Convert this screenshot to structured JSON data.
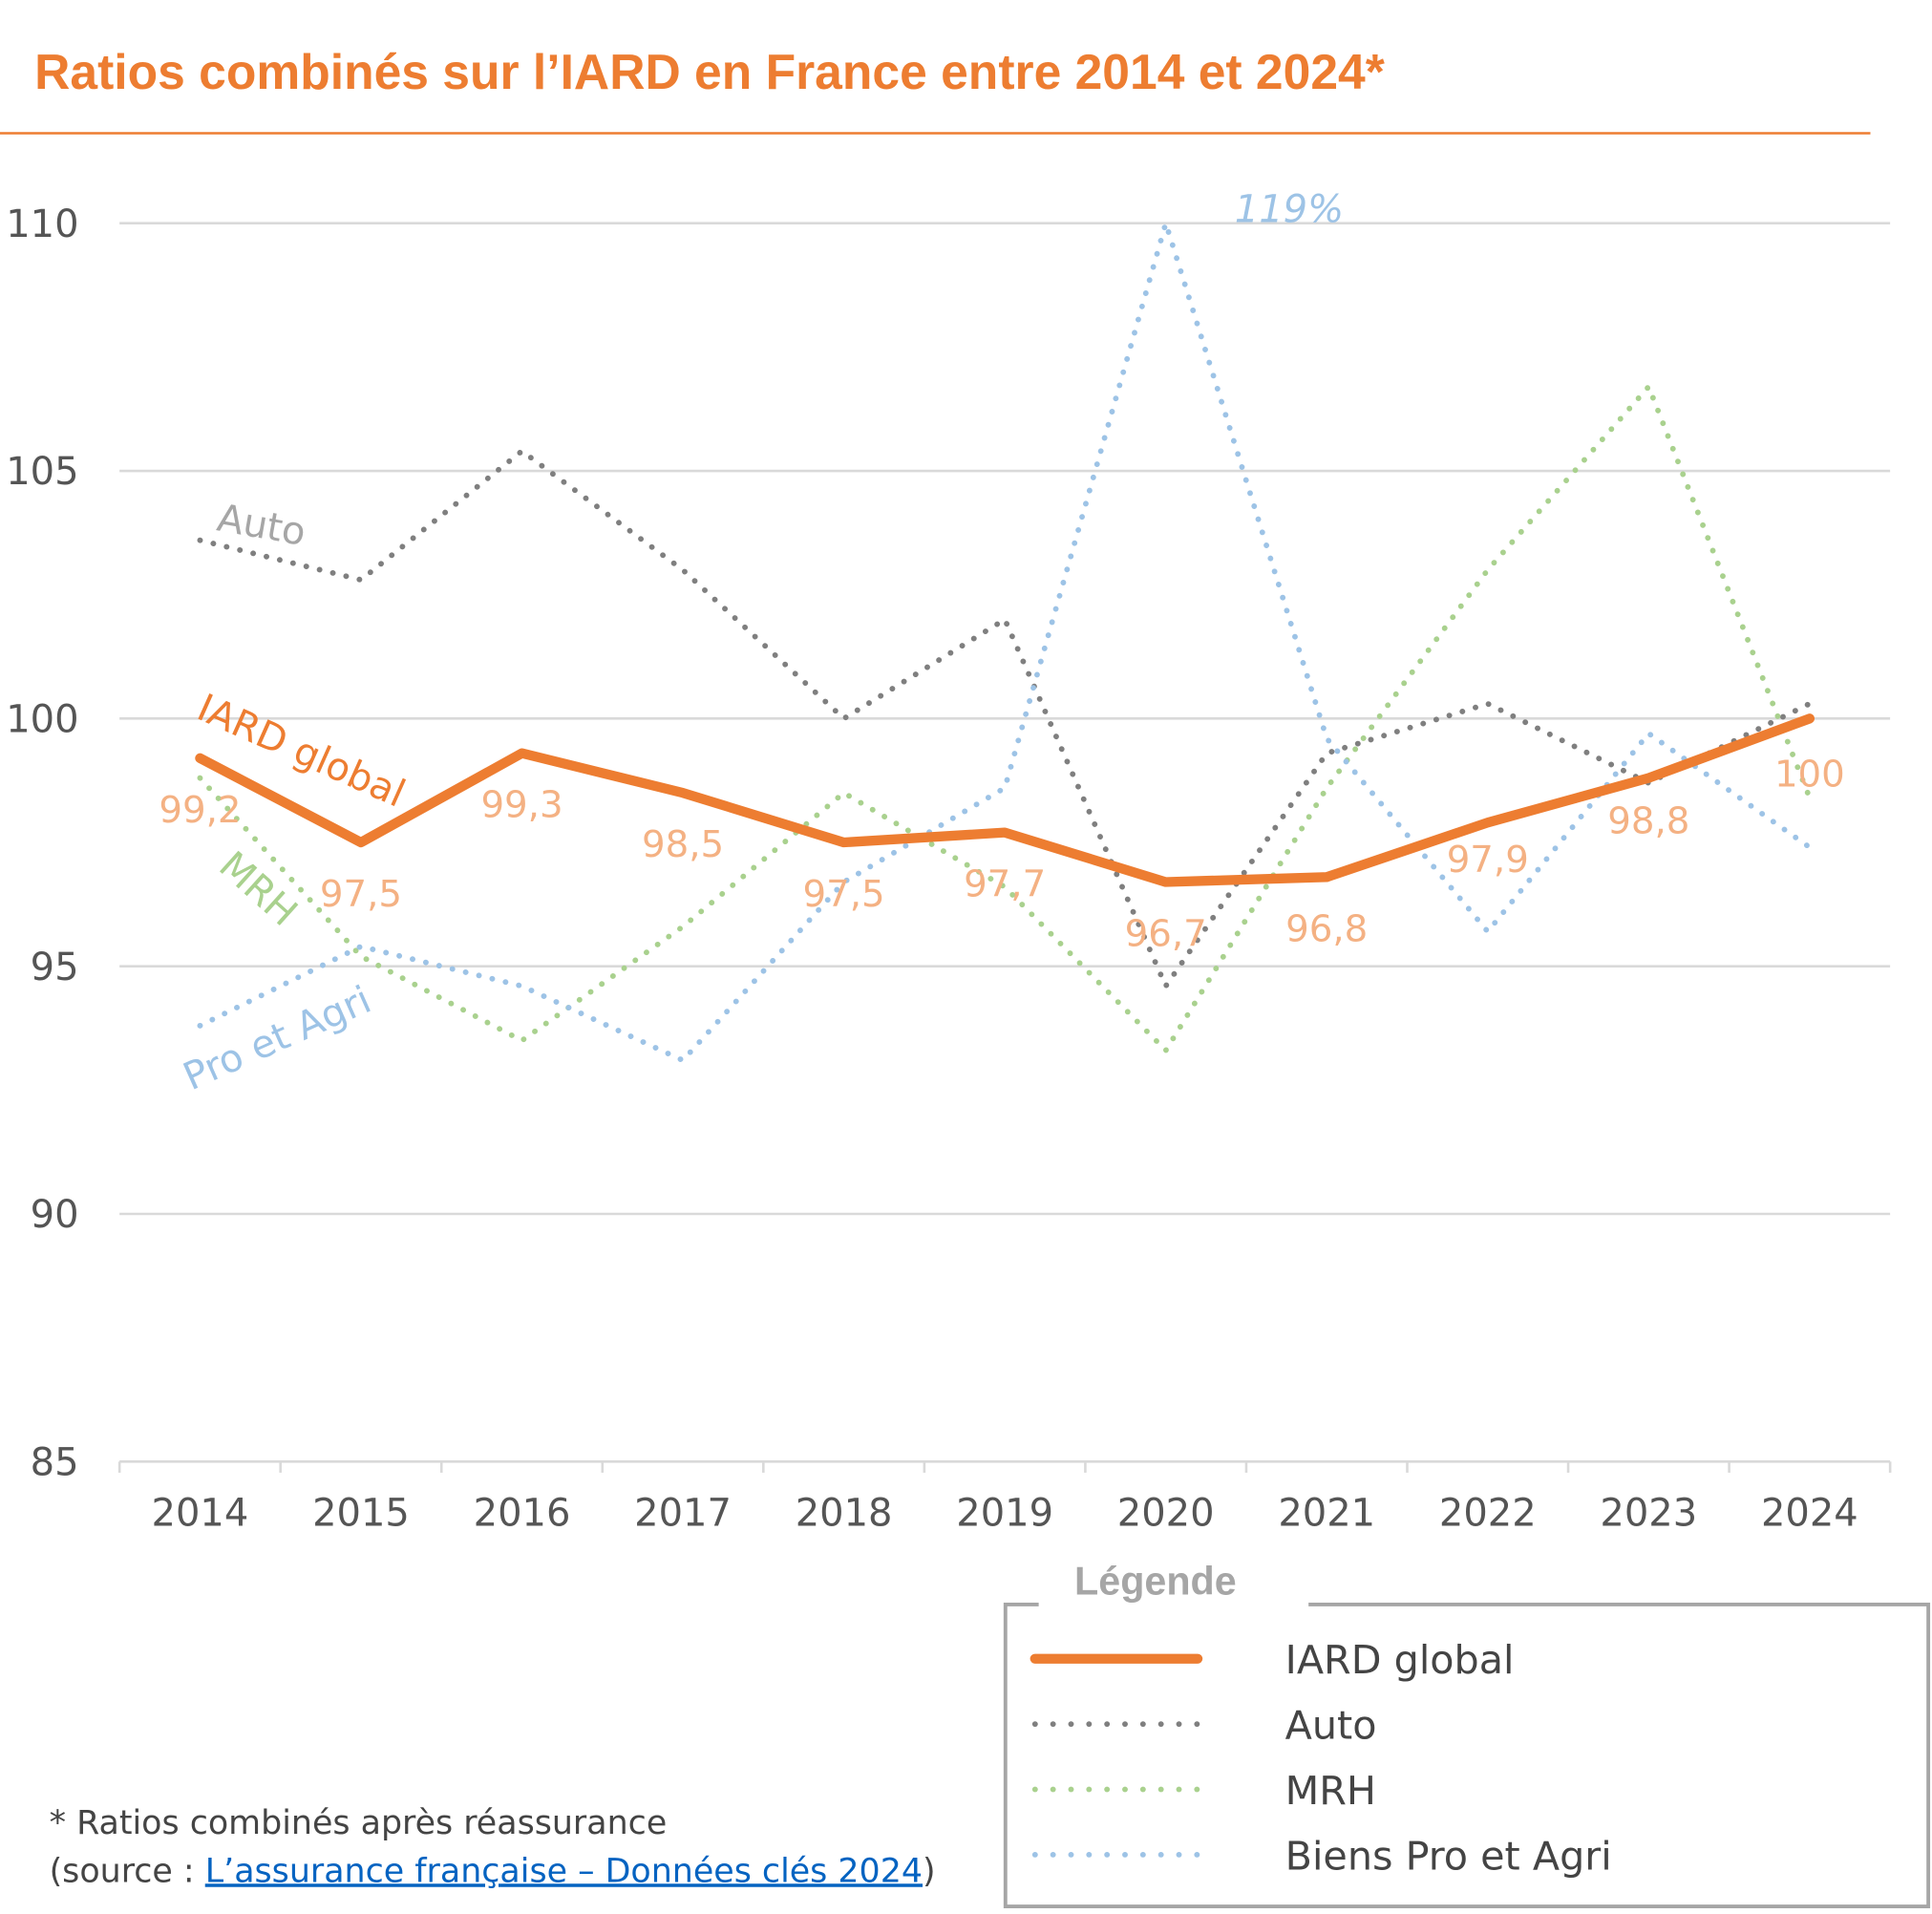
{
  "chart_data": {
    "type": "line",
    "title": "Ratios combinés sur l’IARD en France entre 2014 et 2024*",
    "xlabel": "",
    "ylabel": "",
    "categories": [
      "2014",
      "2015",
      "2016",
      "2017",
      "2018",
      "2019",
      "2020",
      "2021",
      "2022",
      "2023",
      "2024"
    ],
    "ylim": [
      85,
      110
    ],
    "yticks": [
      "85",
      "90",
      "95",
      "100",
      "105",
      "110"
    ],
    "grid": true,
    "series": [
      {
        "name": "IARD global",
        "color": "#ED7D31",
        "style": "solid",
        "values": [
          99.2,
          97.5,
          99.3,
          98.5,
          97.5,
          97.7,
          96.7,
          96.8,
          97.9,
          98.8,
          100
        ],
        "data_labels": [
          "99,2",
          "97,5",
          "99,3",
          "98,5",
          "97,5",
          "97,7",
          "96,7",
          "96,8",
          "97,9",
          "98,8",
          "100"
        ]
      },
      {
        "name": "Auto",
        "color": "#7F7F7F",
        "style": "dotted",
        "values": [
          103.6,
          102.8,
          105.4,
          103.0,
          100.0,
          102.0,
          94.6,
          99.3,
          100.3,
          98.7,
          100.3
        ]
      },
      {
        "name": "MRH",
        "color": "#A9D18E",
        "style": "dotted",
        "values": [
          98.8,
          95.2,
          93.5,
          95.8,
          98.5,
          96.6,
          93.3,
          98.6,
          103.0,
          106.7,
          98.4
        ]
      },
      {
        "name": "Biens Pro et Agri",
        "color": "#9DC3E6",
        "style": "dotted",
        "values": [
          93.8,
          95.4,
          94.6,
          93.1,
          96.7,
          98.6,
          119,
          99.6,
          95.7,
          99.7,
          97.4
        ]
      }
    ],
    "annotations": {
      "iard": "IARD global",
      "auto": "Auto",
      "mrh": "MRH",
      "pro": "Pro et Agri",
      "peak": "119%"
    },
    "legend": {
      "title": "Légende",
      "position": "bottom-right"
    }
  },
  "footnote": {
    "line1": "* Ratios combinés après réassurance",
    "prefix": "(source : ",
    "link": "L’assurance française – Données clés 2024",
    "suffix": ")"
  }
}
